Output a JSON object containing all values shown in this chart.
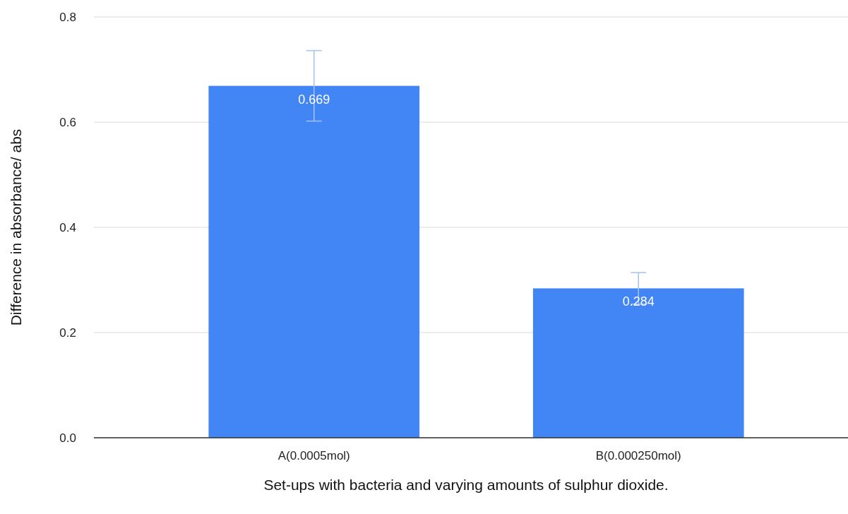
{
  "chart_data": {
    "type": "bar",
    "xlabel": "Set-ups with bacteria and varying amounts of sulphur dioxide.",
    "ylabel": "Difference in absorbance/ abs",
    "categories": [
      "A(0.0005mol)",
      "B(0.000250mol)"
    ],
    "values": [
      0.669,
      0.284
    ],
    "errors": [
      0.067,
      0.03
    ],
    "color": "#4285f4",
    "data_labels": true,
    "ylim": [
      0,
      0.8
    ],
    "yticks": [
      {
        "value": 0,
        "label": "0.0"
      },
      0.2,
      0.4,
      0.6,
      0.8
    ],
    "grid": "y"
  }
}
